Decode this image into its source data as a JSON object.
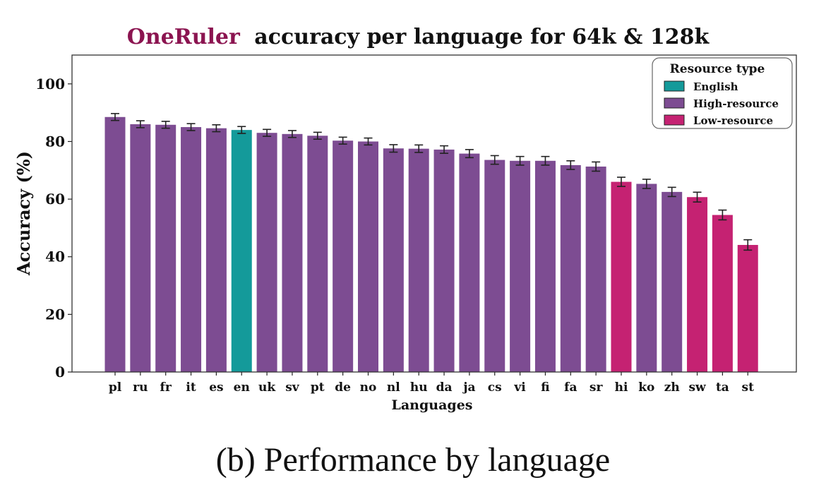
{
  "chart_data": {
    "type": "bar",
    "title_highlight": "OneRuler",
    "title_rest": "accuracy per language for 64k & 128k",
    "xlabel": "Languages",
    "ylabel": "Accuracy (%)",
    "ylim": [
      0,
      110
    ],
    "yticks": [
      0,
      20,
      40,
      60,
      80,
      100
    ],
    "grid": false,
    "legend_placement": "top-right",
    "legend_title": "Resource type",
    "legend": [
      {
        "key": "english",
        "label": "English",
        "color": "#149a9a"
      },
      {
        "key": "high",
        "label": "High-resource",
        "color": "#7d4c92"
      },
      {
        "key": "low",
        "label": "Low-resource",
        "color": "#c52272"
      }
    ],
    "title_highlight_color": "#8b1450",
    "categories": [
      "pl",
      "ru",
      "fr",
      "it",
      "es",
      "en",
      "uk",
      "sv",
      "pt",
      "de",
      "no",
      "nl",
      "hu",
      "da",
      "ja",
      "cs",
      "vi",
      "fi",
      "fa",
      "sr",
      "hi",
      "ko",
      "zh",
      "sw",
      "ta",
      "st"
    ],
    "values": [
      88.5,
      86.0,
      85.8,
      85.0,
      84.6,
      84.0,
      83.0,
      82.6,
      82.0,
      80.3,
      80.0,
      77.6,
      77.5,
      77.2,
      75.8,
      73.6,
      73.3,
      73.3,
      71.8,
      71.3,
      66.0,
      65.3,
      62.5,
      60.7,
      54.5,
      44.1
    ],
    "errors": [
      1.2,
      1.2,
      1.2,
      1.2,
      1.2,
      1.2,
      1.2,
      1.2,
      1.2,
      1.2,
      1.2,
      1.3,
      1.3,
      1.3,
      1.4,
      1.5,
      1.5,
      1.5,
      1.5,
      1.6,
      1.6,
      1.6,
      1.6,
      1.7,
      1.7,
      1.8
    ],
    "resource": [
      "high",
      "high",
      "high",
      "high",
      "high",
      "english",
      "high",
      "high",
      "high",
      "high",
      "high",
      "high",
      "high",
      "high",
      "high",
      "high",
      "high",
      "high",
      "high",
      "high",
      "low",
      "high",
      "high",
      "low",
      "low",
      "low"
    ]
  },
  "caption": "(b) Performance by language"
}
